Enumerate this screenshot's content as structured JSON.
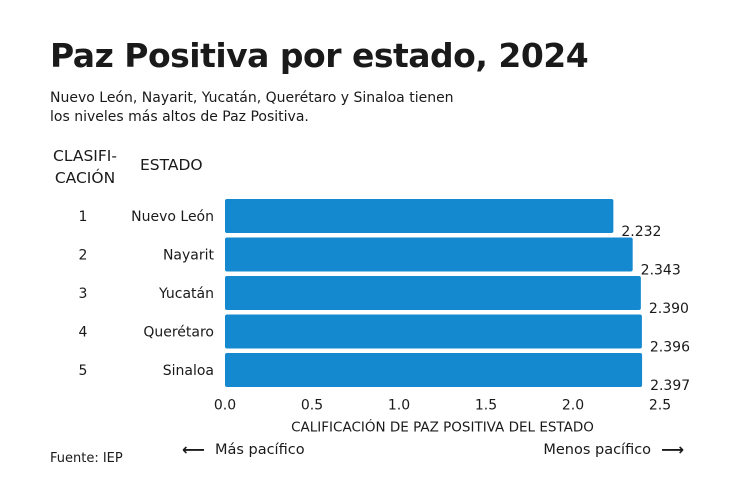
{
  "chart_data": {
    "type": "bar",
    "orientation": "horizontal",
    "title": "Paz Positiva por estado, 2024",
    "subtitle": "Nuevo León, Nayarit, Yucatán, Querétaro y Sinaloa tienen los niveles más altos de Paz Positiva.",
    "rank_header": "CLASIFI-CACIÓN",
    "rank_header_line1": "CLASIFI-",
    "rank_header_line2": "CACIÓN",
    "category_header": "ESTADO",
    "ranks": [
      "1",
      "2",
      "3",
      "4",
      "5"
    ],
    "categories": [
      "Nuevo León",
      "Nayarit",
      "Yucatán",
      "Querétaro",
      "Sinaloa"
    ],
    "values": [
      2.232,
      2.343,
      2.39,
      2.396,
      2.397
    ],
    "value_labels": [
      "2.232",
      "2.343",
      "2.390",
      "2.396",
      "2.397"
    ],
    "xlabel": "CALIFICACIÓN DE PAZ POSITIVA DEL ESTADO",
    "xlim": [
      0,
      2.5
    ],
    "xticks": [
      "0.0",
      "0.5",
      "1.0",
      "1.5",
      "2.0",
      "2.5"
    ],
    "xtick_values": [
      0,
      0.5,
      1.0,
      1.5,
      2.0,
      2.5
    ],
    "grid": false,
    "bar_color": "#1589cf",
    "left_direction": "Más pacífico",
    "right_direction": "Menos pacífico",
    "source": "Fuente: IEP"
  }
}
